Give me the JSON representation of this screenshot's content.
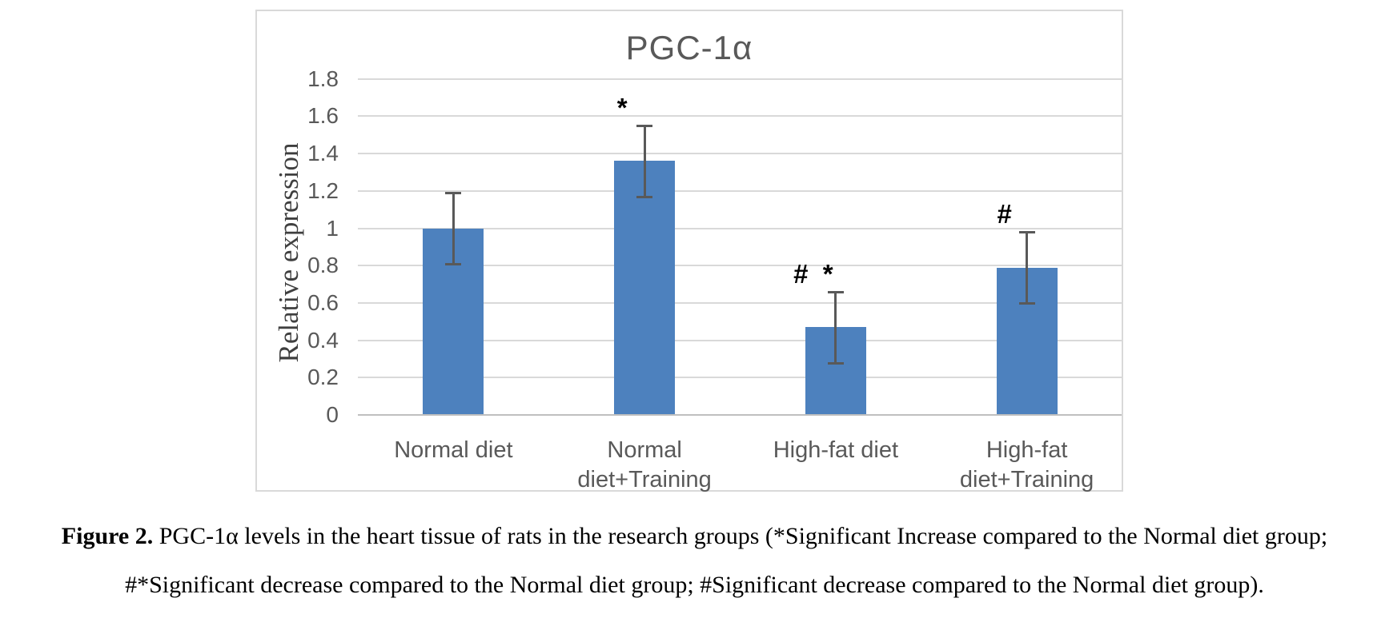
{
  "chart_data": {
    "type": "bar",
    "title": "PGC-1α",
    "ylabel": "Relative expression",
    "xlabel": "",
    "categories": [
      "Normal diet",
      "Normal diet+Training",
      "High-fat diet",
      "High-fat diet+Training"
    ],
    "values": [
      1.0,
      1.36,
      0.47,
      0.79
    ],
    "error": [
      0.19,
      0.19,
      0.19,
      0.19
    ],
    "significance_markers": [
      "",
      "*",
      "#  *",
      "#"
    ],
    "ylim": [
      0,
      1.9
    ],
    "yticks": [
      0,
      0.2,
      0.4,
      0.6,
      0.8,
      1,
      1.2,
      1.4,
      1.6,
      1.8
    ],
    "grid": true,
    "legend": "none",
    "bar_color": "#4d81be",
    "grid_color": "#d9d9d9",
    "axis_line_color": "#bfbfbf",
    "error_bar_color": "#595959",
    "tick_label_color": "#595959",
    "title_color": "#595959"
  },
  "caption": {
    "label": "Figure 2.",
    "line1": " PGC-1α levels in the heart tissue of rats in the research groups (*Significant Increase compared to the Normal diet group;",
    "line2": "#*Significant decrease compared to the Normal diet group; #Significant decrease compared to the Normal diet group)."
  }
}
